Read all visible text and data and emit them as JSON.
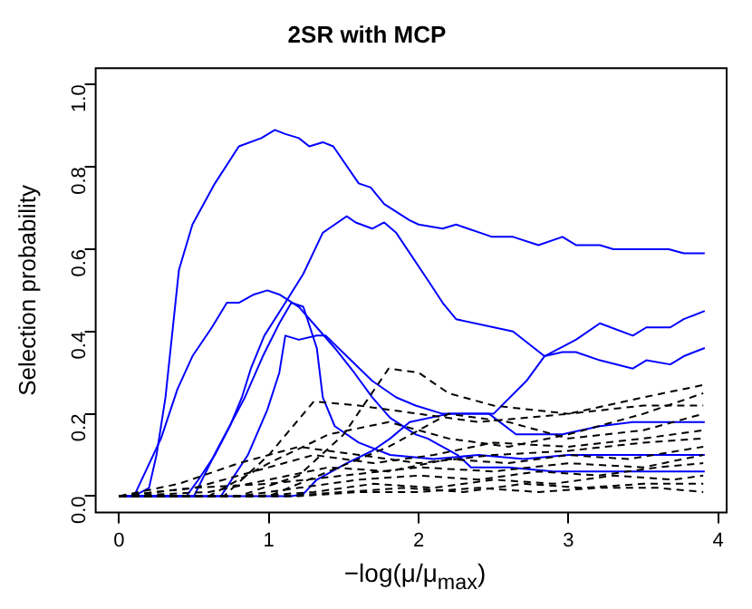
{
  "chart_data": {
    "type": "line",
    "title": "2SR with MCP",
    "xlabel": "−log(μ/μ$_{max}$)",
    "ylabel": "Selection probability",
    "xlim": [
      -0.156,
      4.056
    ],
    "xticks": [
      0,
      1,
      2,
      3,
      4
    ],
    "ylim": [
      -0.04,
      1.04
    ],
    "yticks": [
      {
        "value": 0,
        "label": "0.0"
      },
      {
        "value": 0.2,
        "label": "0.2"
      },
      {
        "value": 0.4,
        "label": "0.4"
      },
      {
        "value": 0.6,
        "label": "0.6"
      },
      {
        "value": 0.8,
        "label": "0.8"
      },
      {
        "value": 1,
        "label": "1.0"
      }
    ],
    "marker": "none",
    "series": [
      {
        "color": "#000000",
        "line_style": "dashed",
        "x": [
          0,
          0.8,
          1.2,
          1.5,
          1.8,
          2.0,
          2.2,
          2.5,
          3.0,
          3.5,
          3.9
        ],
        "values": [
          0,
          0,
          0.05,
          0.15,
          0.31,
          0.3,
          0.25,
          0.22,
          0.2,
          0.22,
          0.22
        ]
      },
      {
        "color": "#000000",
        "line_style": "dashed",
        "x": [
          0,
          0.7,
          1.0,
          1.3,
          1.6,
          2.0,
          2.4,
          3.0,
          3.5,
          3.9
        ],
        "values": [
          0,
          0,
          0.1,
          0.23,
          0.22,
          0.2,
          0.18,
          0.2,
          0.24,
          0.27
        ]
      },
      {
        "color": "#000000",
        "line_style": "dashed",
        "x": [
          0,
          0.6,
          1.0,
          1.4,
          1.8,
          2.2,
          2.6,
          3.0,
          3.5,
          3.9
        ],
        "values": [
          0,
          0,
          0.08,
          0.15,
          0.18,
          0.14,
          0.12,
          0.15,
          0.2,
          0.25
        ]
      },
      {
        "color": "#000000",
        "line_style": "dashed",
        "x": [
          0,
          1.0,
          1.4,
          1.8,
          2.2,
          2.6,
          3.0,
          3.5,
          3.9
        ],
        "values": [
          0,
          0,
          0.06,
          0.12,
          0.2,
          0.18,
          0.14,
          0.16,
          0.2
        ]
      },
      {
        "color": "#000000",
        "line_style": "dashed",
        "x": [
          0,
          0.5,
          0.9,
          1.3,
          1.7,
          2.1,
          2.5,
          3.0,
          3.5,
          3.9
        ],
        "values": [
          0,
          0.02,
          0.06,
          0.1,
          0.08,
          0.1,
          0.13,
          0.12,
          0.14,
          0.16
        ]
      },
      {
        "color": "#000000",
        "line_style": "dashed",
        "x": [
          0,
          0.4,
          0.8,
          1.2,
          1.6,
          2.0,
          2.5,
          3.0,
          3.5,
          3.9
        ],
        "values": [
          0,
          0.03,
          0.08,
          0.12,
          0.1,
          0.08,
          0.1,
          0.11,
          0.13,
          0.14
        ]
      },
      {
        "color": "#000000",
        "line_style": "dashed",
        "x": [
          0,
          0.6,
          1.0,
          1.4,
          1.8,
          2.2,
          2.6,
          3.0,
          3.4,
          3.9
        ],
        "values": [
          0,
          0.01,
          0.04,
          0.07,
          0.06,
          0.09,
          0.08,
          0.1,
          0.09,
          0.12
        ]
      },
      {
        "color": "#000000",
        "line_style": "dashed",
        "x": [
          0,
          0.5,
          1.0,
          1.5,
          2.0,
          2.5,
          3.0,
          3.5,
          3.9
        ],
        "values": [
          0,
          0.02,
          0.03,
          0.05,
          0.07,
          0.06,
          0.08,
          0.07,
          0.1
        ]
      },
      {
        "color": "#000000",
        "line_style": "dashed",
        "x": [
          0,
          0.8,
          1.2,
          1.6,
          2.0,
          2.4,
          2.8,
          3.2,
          3.6,
          3.9
        ],
        "values": [
          0,
          0,
          0.02,
          0.04,
          0.05,
          0.04,
          0.06,
          0.05,
          0.07,
          0.08
        ]
      },
      {
        "color": "#000000",
        "line_style": "dashed",
        "x": [
          0,
          0.9,
          1.3,
          1.7,
          2.1,
          2.5,
          2.9,
          3.3,
          3.7,
          3.9
        ],
        "values": [
          0,
          0,
          0.01,
          0.03,
          0.02,
          0.04,
          0.03,
          0.05,
          0.04,
          0.05
        ]
      },
      {
        "color": "#000000",
        "line_style": "dashed",
        "x": [
          0,
          1.1,
          1.5,
          1.9,
          2.3,
          2.7,
          3.1,
          3.5,
          3.9
        ],
        "values": [
          0,
          0,
          0.01,
          0.02,
          0.01,
          0.03,
          0.02,
          0.03,
          0.03
        ]
      },
      {
        "color": "#000000",
        "line_style": "dashed",
        "x": [
          0,
          1.2,
          1.6,
          2.0,
          2.4,
          2.8,
          3.2,
          3.6,
          3.9
        ],
        "values": [
          0,
          0,
          0.01,
          0.01,
          0.02,
          0.01,
          0.02,
          0.02,
          0.01
        ]
      },
      {
        "color": "#0000ff",
        "line_style": "solid",
        "x": [
          0,
          0.1,
          0.2,
          0.25,
          0.31,
          0.4,
          0.49,
          0.64,
          0.8,
          0.95,
          1.04,
          1.11,
          1.2,
          1.27,
          1.36,
          1.43,
          1.6,
          1.68,
          1.77,
          1.94,
          2.0,
          2.16,
          2.25,
          2.49,
          2.63,
          2.8,
          2.96,
          3.05,
          3.21,
          3.3,
          3.67,
          3.77,
          3.91
        ],
        "values": [
          0,
          0,
          0.02,
          0.1,
          0.24,
          0.55,
          0.66,
          0.76,
          0.85,
          0.87,
          0.89,
          0.88,
          0.87,
          0.85,
          0.86,
          0.85,
          0.76,
          0.75,
          0.71,
          0.67,
          0.66,
          0.65,
          0.66,
          0.63,
          0.63,
          0.61,
          0.63,
          0.61,
          0.61,
          0.6,
          0.6,
          0.59,
          0.59
        ]
      },
      {
        "color": "#0000ff",
        "line_style": "solid",
        "x": [
          0,
          0.45,
          0.53,
          0.64,
          0.74,
          0.82,
          0.88,
          0.97,
          1.11,
          1.23,
          1.36,
          1.44,
          1.52,
          1.58,
          1.69,
          1.77,
          1.85,
          2.07,
          2.16,
          2.25,
          2.63,
          2.84,
          2.96,
          3.05,
          3.21,
          3.43,
          3.52,
          3.68,
          3.77,
          3.91
        ],
        "values": [
          0,
          0,
          0.04,
          0.1,
          0.17,
          0.24,
          0.31,
          0.39,
          0.47,
          0.54,
          0.64,
          0.66,
          0.68,
          0.665,
          0.65,
          0.665,
          0.64,
          0.52,
          0.47,
          0.43,
          0.4,
          0.34,
          0.35,
          0.35,
          0.33,
          0.31,
          0.33,
          0.32,
          0.34,
          0.36
        ]
      },
      {
        "color": "#0000ff",
        "line_style": "solid",
        "x": [
          0,
          1.15,
          1.23,
          1.32,
          1.52,
          1.69,
          1.81,
          1.94,
          2.2,
          2.5,
          2.72,
          2.84,
          3.05,
          3.21,
          3.43,
          3.52,
          3.68,
          3.77,
          3.91
        ],
        "values": [
          0,
          0,
          0.005,
          0.04,
          0.08,
          0.11,
          0.14,
          0.18,
          0.2,
          0.2,
          0.28,
          0.34,
          0.38,
          0.42,
          0.39,
          0.41,
          0.41,
          0.43,
          0.45
        ]
      },
      {
        "color": "#0000ff",
        "line_style": "solid",
        "x": [
          0,
          0.1,
          0.28,
          0.39,
          0.49,
          0.62,
          0.72,
          0.8,
          0.9,
          0.99,
          1.07,
          1.2,
          1.32,
          1.44,
          1.57,
          1.69,
          1.81,
          1.98,
          2.06,
          2.26,
          2.35,
          2.6,
          2.9,
          3.2,
          3.5,
          3.91
        ],
        "values": [
          0,
          0,
          0.14,
          0.26,
          0.34,
          0.41,
          0.47,
          0.47,
          0.49,
          0.5,
          0.49,
          0.46,
          0.41,
          0.36,
          0.3,
          0.24,
          0.19,
          0.15,
          0.14,
          0.1,
          0.07,
          0.07,
          0.06,
          0.06,
          0.06,
          0.06
        ]
      },
      {
        "color": "#0000ff",
        "line_style": "solid",
        "x": [
          0,
          0.5,
          0.65,
          0.84,
          0.96,
          1.07,
          1.15,
          1.23,
          1.32,
          1.36,
          1.44,
          1.6,
          1.81,
          2.1,
          2.4,
          2.7,
          3.0,
          3.4,
          3.91
        ],
        "values": [
          0,
          0,
          0.11,
          0.24,
          0.34,
          0.42,
          0.47,
          0.46,
          0.36,
          0.24,
          0.17,
          0.13,
          0.1,
          0.09,
          0.1,
          0.09,
          0.1,
          0.1,
          0.1
        ]
      },
      {
        "color": "#0000ff",
        "line_style": "solid",
        "x": [
          0,
          0.68,
          0.86,
          0.99,
          1.07,
          1.11,
          1.2,
          1.32,
          1.38,
          1.52,
          1.69,
          1.85,
          1.98,
          2.16,
          2.47,
          2.65,
          2.96,
          3.21,
          3.43,
          3.67,
          3.91
        ],
        "values": [
          0,
          0,
          0.1,
          0.21,
          0.3,
          0.39,
          0.38,
          0.39,
          0.39,
          0.34,
          0.28,
          0.24,
          0.22,
          0.2,
          0.2,
          0.15,
          0.15,
          0.17,
          0.18,
          0.18,
          0.18
        ]
      }
    ]
  }
}
